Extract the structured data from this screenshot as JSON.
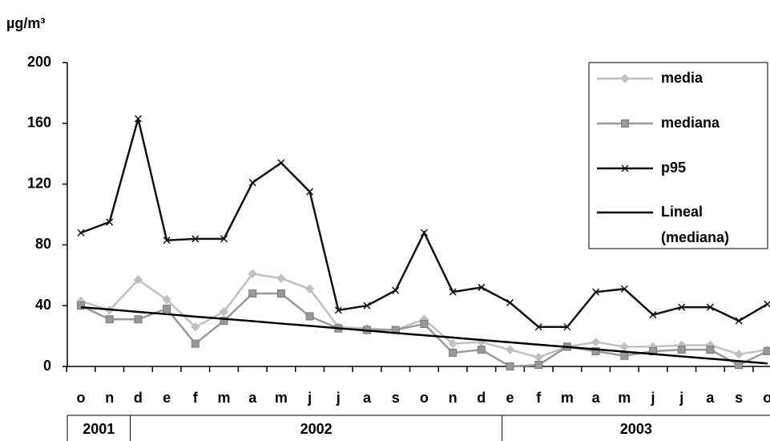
{
  "chart_data": {
    "type": "line",
    "y_label": "µg/m³",
    "categories": [
      "o",
      "n",
      "d",
      "e",
      "f",
      "m",
      "a",
      "m",
      "j",
      "j",
      "a",
      "s",
      "o",
      "n",
      "d",
      "e",
      "f",
      "m",
      "a",
      "m",
      "j",
      "j",
      "a",
      "s",
      "o"
    ],
    "year_groups": [
      {
        "label": "2001",
        "count": 2
      },
      {
        "label": "2002",
        "count": 13
      },
      {
        "label": "2003",
        "count": 10
      }
    ],
    "series": [
      {
        "name": "media",
        "color": "#c0c0c0",
        "marker": "diamond",
        "values": [
          43,
          37,
          57,
          44,
          26,
          36,
          61,
          58,
          51,
          26,
          25,
          24,
          31,
          15,
          16,
          11,
          6,
          13,
          16,
          13,
          13,
          14,
          14,
          8,
          11
        ]
      },
      {
        "name": "mediana",
        "color": "#999999",
        "marker": "square",
        "values": [
          40,
          31,
          31,
          38,
          15,
          30,
          48,
          48,
          33,
          25,
          24,
          24,
          28,
          9,
          11,
          0,
          1,
          13,
          10,
          7,
          10,
          11,
          11,
          1,
          10
        ]
      },
      {
        "name": "p95",
        "color": "#111111",
        "marker": "x",
        "values": [
          88,
          95,
          163,
          83,
          84,
          84,
          121,
          134,
          115,
          37,
          40,
          50,
          88,
          49,
          52,
          42,
          26,
          26,
          49,
          51,
          34,
          39,
          39,
          30,
          41
        ]
      },
      {
        "name": "Lineal (mediana)",
        "color": "#000000",
        "marker": "none",
        "values": [
          39,
          37.5,
          35.9,
          34.4,
          32.8,
          31.3,
          29.8,
          28.2,
          26.7,
          25.1,
          23.6,
          22,
          20.5,
          19,
          17.4,
          15.9,
          14.3,
          12.8,
          11.3,
          9.7,
          8.2,
          6.6,
          5.1,
          3.5,
          2
        ]
      }
    ],
    "ylim": [
      0,
      200
    ],
    "yticks": [
      0,
      40,
      80,
      120,
      160,
      200
    ],
    "grid": false,
    "legend": "upper right"
  }
}
